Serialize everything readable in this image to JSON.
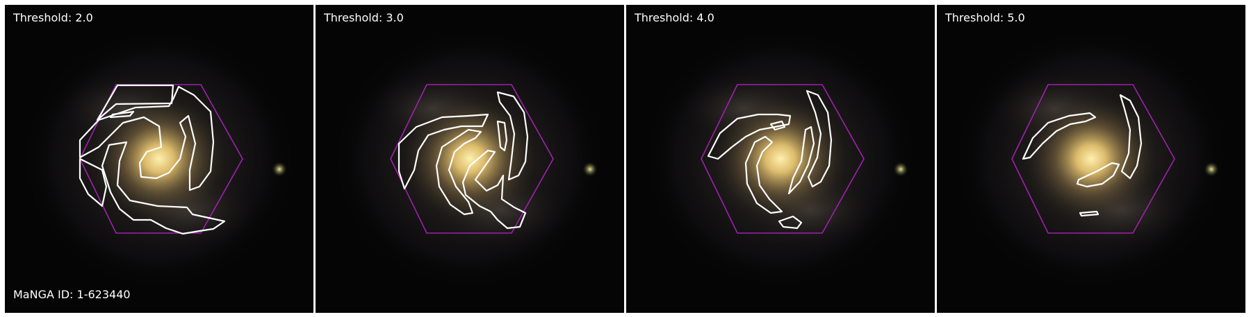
{
  "panels": [
    {
      "threshold_label": "Threshold: 2.0"
    },
    {
      "threshold_label": "Threshold: 3.0"
    },
    {
      "threshold_label": "Threshold: 4.0"
    },
    {
      "threshold_label": "Threshold: 5.0"
    }
  ],
  "manga_id_label": "MaNGA ID: 1-623440",
  "colors": {
    "background": "#050505",
    "hexagon": "#a020b0",
    "contour": "#ffffff",
    "galaxy_core": "#f3d27a",
    "galaxy_glow": "#6e5e3a",
    "companion_star": "#c9c884",
    "label_text": "#ffffff",
    "separator": "#ffffff"
  }
}
